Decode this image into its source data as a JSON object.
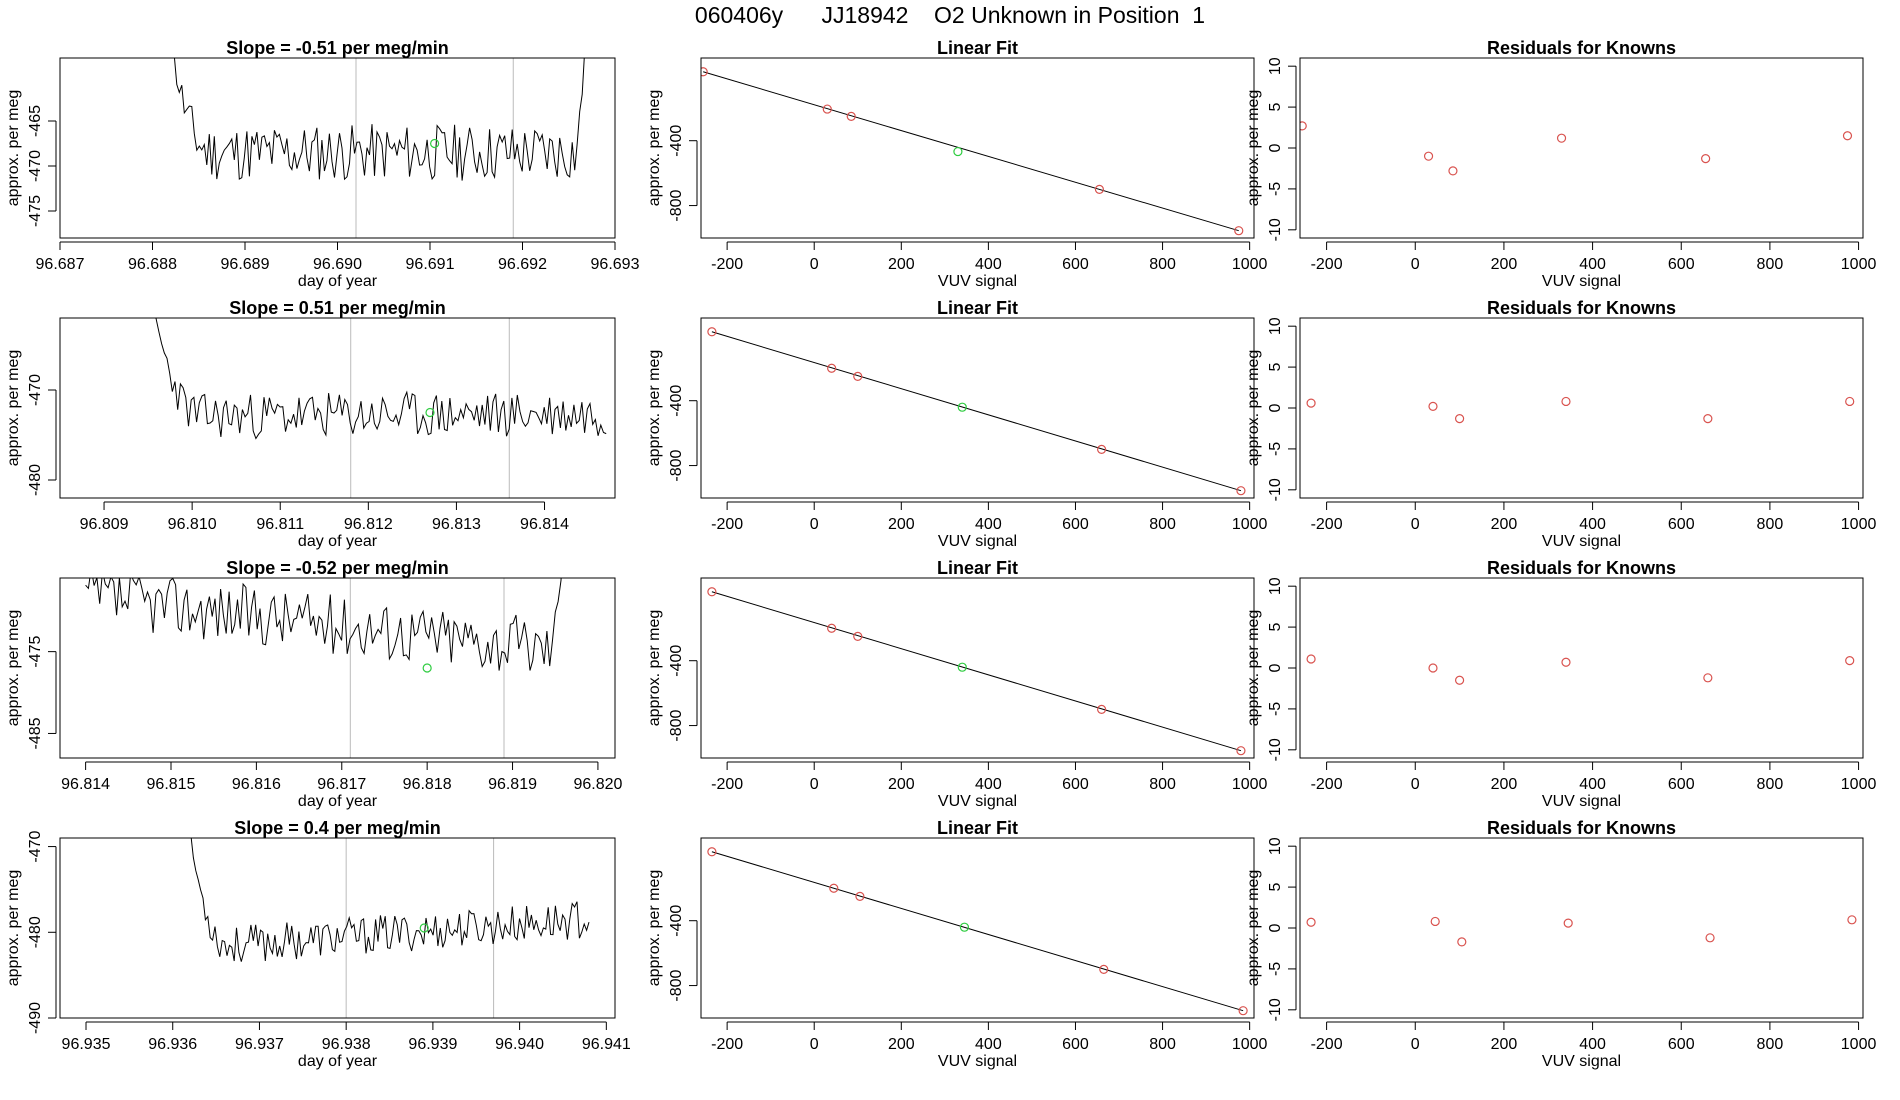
{
  "figure_title": "060406y      JJ18942    O2 Unknown in Position  1",
  "colors": {
    "trace": "#000000",
    "known_point": "#d9534f",
    "unknown_point": "#2ecc40",
    "gridline": "#bbbbbb"
  },
  "chart_data": [
    {
      "type": "line",
      "panel": "time-series-row-1",
      "title": "Slope =  -0.51  per meg/min",
      "xlabel": "day of year",
      "ylabel": "approx. per meg",
      "xlim": [
        96.687,
        96.693
      ],
      "ylim": [
        -478,
        -458
      ],
      "xticks": [
        "96.687",
        "96.688",
        "96.689",
        "96.690",
        "96.691",
        "96.692",
        "96.693"
      ],
      "yticks": [
        "-465",
        "-470",
        "-475"
      ],
      "ytick_values": [
        -465,
        -470,
        -475
      ],
      "vlines": [
        96.6902,
        96.6919
      ],
      "series": {
        "x_start": 96.6881,
        "x_end": 96.6927,
        "baseline": -468.5,
        "noise": 2.0,
        "spike_start": -450,
        "spike_end": -450,
        "trend": 0,
        "seed": 11
      },
      "marker": {
        "x": 96.69105,
        "y": -467.5
      }
    },
    {
      "type": "scatter",
      "panel": "linear-fit-row-1",
      "title": "Linear Fit",
      "xlabel": "VUV signal",
      "ylabel": "approx. per meg",
      "xlim": [
        -260,
        1010
      ],
      "ylim": [
        -1000,
        110
      ],
      "xticks": [
        "-200",
        "0",
        "200",
        "400",
        "600",
        "800",
        "1000"
      ],
      "xtick_values": [
        -200,
        0,
        200,
        400,
        600,
        800,
        1000
      ],
      "yticks": [
        "-400",
        "-800"
      ],
      "ytick_values": [
        -400,
        -800
      ],
      "line": {
        "x": [
          -255,
          975
        ],
        "y": [
          25,
          -955
        ]
      },
      "known_x": [
        -255,
        30,
        85,
        655,
        975
      ],
      "known_y": [
        25,
        -205,
        -250,
        -700,
        -955
      ],
      "unknown": {
        "x": 330,
        "y": -467
      }
    },
    {
      "type": "scatter",
      "panel": "residuals-row-1",
      "title": "Residuals for Knowns",
      "xlabel": "VUV signal",
      "ylabel": "approx. per meg",
      "xlim": [
        -260,
        1010
      ],
      "ylim": [
        -11,
        11
      ],
      "xticks": [
        "-200",
        "0",
        "200",
        "400",
        "600",
        "800",
        "1000"
      ],
      "xtick_values": [
        -200,
        0,
        200,
        400,
        600,
        800,
        1000
      ],
      "yticks": [
        "10",
        "5",
        "0",
        "-5",
        "-10"
      ],
      "ytick_values": [
        10,
        5,
        0,
        -5,
        -10
      ],
      "x": [
        -255,
        30,
        85,
        330,
        655,
        975
      ],
      "y": [
        2.7,
        -1.0,
        -2.8,
        1.2,
        -1.3,
        1.5
      ]
    },
    {
      "type": "line",
      "panel": "time-series-row-2",
      "title": "Slope =  0.51  per meg/min",
      "xlabel": "day of year",
      "ylabel": "approx. per meg",
      "xlim": [
        96.8085,
        96.8148
      ],
      "ylim": [
        -482,
        -462
      ],
      "xticks": [
        "96.809",
        "96.810",
        "96.811",
        "96.812",
        "96.813",
        "96.814"
      ],
      "xtick_values": [
        96.809,
        96.81,
        96.811,
        96.812,
        96.813,
        96.814
      ],
      "yticks": [
        "-470",
        "-480"
      ],
      "ytick_values": [
        -470,
        -480
      ],
      "vlines": [
        96.8118,
        96.8136
      ],
      "series": {
        "x_start": 96.8095,
        "x_end": 96.8147,
        "baseline": -472.8,
        "noise": 1.6,
        "spike_start": -458,
        "spike_end": null,
        "trend": 0.3,
        "seed": 23
      },
      "marker": {
        "x": 96.8127,
        "y": -472.5
      }
    },
    {
      "type": "scatter",
      "panel": "linear-fit-row-2",
      "title": "Linear Fit",
      "xlabel": "VUV signal",
      "ylabel": "approx. per meg",
      "xlim": [
        -260,
        1010
      ],
      "ylim": [
        -1000,
        110
      ],
      "xticks": [
        "-200",
        "0",
        "200",
        "400",
        "600",
        "800",
        "1000"
      ],
      "xtick_values": [
        -200,
        0,
        200,
        400,
        600,
        800,
        1000
      ],
      "yticks": [
        "-400",
        "-800"
      ],
      "ytick_values": [
        -400,
        -800
      ],
      "line": {
        "x": [
          -235,
          980
        ],
        "y": [
          25,
          -955
        ]
      },
      "known_x": [
        -235,
        40,
        100,
        660,
        980
      ],
      "known_y": [
        25,
        -200,
        -250,
        -700,
        -955
      ],
      "unknown": {
        "x": 340,
        "y": -440
      }
    },
    {
      "type": "scatter",
      "panel": "residuals-row-2",
      "title": "Residuals for Knowns",
      "xlabel": "VUV signal",
      "ylabel": "approx. per meg",
      "xlim": [
        -260,
        1010
      ],
      "ylim": [
        -11,
        11
      ],
      "xticks": [
        "-200",
        "0",
        "200",
        "400",
        "600",
        "800",
        "1000"
      ],
      "xtick_values": [
        -200,
        0,
        200,
        400,
        600,
        800,
        1000
      ],
      "yticks": [
        "10",
        "5",
        "0",
        "-5",
        "-10"
      ],
      "ytick_values": [
        10,
        5,
        0,
        -5,
        -10
      ],
      "x": [
        -235,
        40,
        100,
        340,
        660,
        980
      ],
      "y": [
        0.6,
        0.2,
        -1.3,
        0.8,
        -1.3,
        0.8
      ]
    },
    {
      "type": "line",
      "panel": "time-series-row-3",
      "title": "Slope =  -0.52  per meg/min",
      "xlabel": "day of year",
      "ylabel": "approx. per meg",
      "xlim": [
        96.8137,
        96.8202
      ],
      "ylim": [
        -488,
        -466
      ],
      "xticks": [
        "96.814",
        "96.815",
        "96.816",
        "96.817",
        "96.818",
        "96.819",
        "96.820"
      ],
      "xtick_values": [
        96.814,
        96.815,
        96.816,
        96.817,
        96.818,
        96.819,
        96.82
      ],
      "yticks": [
        "-475",
        "-485"
      ],
      "ytick_values": [
        -475,
        -485
      ],
      "vlines": [
        96.8171,
        96.8189
      ],
      "series": {
        "x_start": 96.814,
        "x_end": 96.8196,
        "baseline": -471.5,
        "noise": 2.3,
        "spike_start": null,
        "spike_end": -460,
        "trend": -6.5,
        "seed": 37
      },
      "marker": {
        "x": 96.818,
        "y": -477
      }
    },
    {
      "type": "scatter",
      "panel": "linear-fit-row-3",
      "title": "Linear Fit",
      "xlabel": "VUV signal",
      "ylabel": "approx. per meg",
      "xlim": [
        -260,
        1010
      ],
      "ylim": [
        -1000,
        110
      ],
      "xticks": [
        "-200",
        "0",
        "200",
        "400",
        "600",
        "800",
        "1000"
      ],
      "xtick_values": [
        -200,
        0,
        200,
        400,
        600,
        800,
        1000
      ],
      "yticks": [
        "-400",
        "-800"
      ],
      "ytick_values": [
        -400,
        -800
      ],
      "line": {
        "x": [
          -235,
          980
        ],
        "y": [
          25,
          -955
        ]
      },
      "known_x": [
        -235,
        40,
        100,
        660,
        980
      ],
      "known_y": [
        25,
        -200,
        -250,
        -700,
        -955
      ],
      "unknown": {
        "x": 340,
        "y": -440
      }
    },
    {
      "type": "scatter",
      "panel": "residuals-row-3",
      "title": "Residuals for Knowns",
      "xlabel": "VUV signal",
      "ylabel": "approx. per meg",
      "xlim": [
        -260,
        1010
      ],
      "ylim": [
        -11,
        11
      ],
      "xticks": [
        "-200",
        "0",
        "200",
        "400",
        "600",
        "800",
        "1000"
      ],
      "xtick_values": [
        -200,
        0,
        200,
        400,
        600,
        800,
        1000
      ],
      "yticks": [
        "10",
        "5",
        "0",
        "-5",
        "-10"
      ],
      "ytick_values": [
        10,
        5,
        0,
        -5,
        -10
      ],
      "x": [
        -235,
        40,
        100,
        340,
        660,
        980
      ],
      "y": [
        1.1,
        0.0,
        -1.5,
        0.7,
        -1.2,
        0.9
      ]
    },
    {
      "type": "line",
      "panel": "time-series-row-4",
      "title": "Slope =  0.4  per meg/min",
      "xlabel": "day of year",
      "ylabel": "approx. per meg",
      "xlim": [
        96.9347,
        96.9411
      ],
      "ylim": [
        -490,
        -469
      ],
      "xticks": [
        "96.935",
        "96.936",
        "96.937",
        "96.938",
        "96.939",
        "96.940",
        "96.941"
      ],
      "xtick_values": [
        96.935,
        96.936,
        96.937,
        96.938,
        96.939,
        96.94,
        96.941
      ],
      "yticks": [
        "-470",
        "-480",
        "-490"
      ],
      "ytick_values": [
        -470,
        -480,
        -490
      ],
      "vlines": [
        96.938,
        96.9397
      ],
      "series": {
        "x_start": 96.9361,
        "x_end": 96.9408,
        "baseline": -480.2,
        "noise": 1.4,
        "spike_start": -462,
        "spike_end": null,
        "trend": 3.5,
        "seed": 53
      },
      "marker": {
        "x": 96.9389,
        "y": -479.5
      }
    },
    {
      "type": "scatter",
      "panel": "linear-fit-row-4",
      "title": "Linear Fit",
      "xlabel": "VUV signal",
      "ylabel": "approx. per meg",
      "xlim": [
        -260,
        1010
      ],
      "ylim": [
        -1000,
        110
      ],
      "xticks": [
        "-200",
        "0",
        "200",
        "400",
        "600",
        "800",
        "1000"
      ],
      "xtick_values": [
        -200,
        0,
        200,
        400,
        600,
        800,
        1000
      ],
      "yticks": [
        "-400",
        "-800"
      ],
      "ytick_values": [
        -400,
        -800
      ],
      "line": {
        "x": [
          -235,
          985
        ],
        "y": [
          25,
          -955
        ]
      },
      "known_x": [
        -235,
        45,
        105,
        665,
        985
      ],
      "known_y": [
        25,
        -200,
        -250,
        -700,
        -955
      ],
      "unknown": {
        "x": 345,
        "y": -440
      }
    },
    {
      "type": "scatter",
      "panel": "residuals-row-4",
      "title": "Residuals for Knowns",
      "xlabel": "VUV signal",
      "ylabel": "approx. per meg",
      "xlim": [
        -260,
        1010
      ],
      "ylim": [
        -11,
        11
      ],
      "xticks": [
        "-200",
        "0",
        "200",
        "400",
        "600",
        "800",
        "1000"
      ],
      "xtick_values": [
        -200,
        0,
        200,
        400,
        600,
        800,
        1000
      ],
      "yticks": [
        "10",
        "5",
        "0",
        "-5",
        "-10"
      ],
      "ytick_values": [
        10,
        5,
        0,
        -5,
        -10
      ],
      "x": [
        -235,
        45,
        105,
        345,
        665,
        985
      ],
      "y": [
        0.7,
        0.8,
        -1.7,
        0.6,
        -1.2,
        1.0
      ]
    }
  ]
}
